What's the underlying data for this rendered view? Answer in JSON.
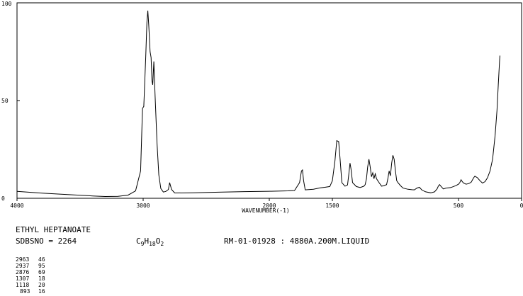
{
  "chart_data": {
    "type": "line",
    "title": "",
    "xlabel": "WAVENUMBER(-1)",
    "ylabel": "",
    "xlim": [
      4000,
      0
    ],
    "ylim": [
      0,
      100
    ],
    "x_ticks": [
      4000,
      3000,
      2000,
      1500,
      500,
      0
    ],
    "x_tick_labels": [
      "4000",
      "3000",
      "2000",
      "1500",
      "500",
      "0"
    ],
    "y_ticks": [
      0,
      50,
      100
    ],
    "y_tick_labels": [
      "0",
      "50",
      "100"
    ],
    "grid": false,
    "series": [
      {
        "points": [
          [
            4000,
            3.5
          ],
          [
            3800,
            2.6
          ],
          [
            3600,
            1.9
          ],
          [
            3400,
            1.2
          ],
          [
            3300,
            0.9
          ],
          [
            3200,
            1.0
          ],
          [
            3120,
            1.6
          ],
          [
            3060,
            3.8
          ],
          [
            3020,
            14
          ],
          [
            3005,
            46
          ],
          [
            2995,
            47
          ],
          [
            2980,
            72
          ],
          [
            2970,
            90
          ],
          [
            2963,
            96
          ],
          [
            2955,
            88
          ],
          [
            2945,
            75
          ],
          [
            2937,
            72
          ],
          [
            2930,
            60
          ],
          [
            2924,
            58
          ],
          [
            2915,
            70
          ],
          [
            2905,
            52
          ],
          [
            2890,
            28
          ],
          [
            2876,
            12
          ],
          [
            2860,
            5
          ],
          [
            2840,
            3.2
          ],
          [
            2820,
            3.5
          ],
          [
            2800,
            4.5
          ],
          [
            2790,
            8
          ],
          [
            2775,
            4.5
          ],
          [
            2750,
            2.7
          ],
          [
            2600,
            2.8
          ],
          [
            2400,
            3.1
          ],
          [
            2200,
            3.4
          ],
          [
            2000,
            3.6
          ],
          [
            1850,
            3.8
          ],
          [
            1800,
            4.0
          ],
          [
            1760,
            8
          ],
          [
            1745,
            14
          ],
          [
            1737,
            14.5
          ],
          [
            1728,
            9
          ],
          [
            1715,
            4.3
          ],
          [
            1650,
            4.6
          ],
          [
            1600,
            5.3
          ],
          [
            1560,
            5.6
          ],
          [
            1520,
            6
          ],
          [
            1500,
            9
          ],
          [
            1480,
            19
          ],
          [
            1465,
            29.5
          ],
          [
            1450,
            29
          ],
          [
            1440,
            21
          ],
          [
            1425,
            8
          ],
          [
            1400,
            6.2
          ],
          [
            1380,
            6.8
          ],
          [
            1370,
            12
          ],
          [
            1360,
            18
          ],
          [
            1352,
            15
          ],
          [
            1340,
            8
          ],
          [
            1310,
            6
          ],
          [
            1280,
            5.5
          ],
          [
            1250,
            6.2
          ],
          [
            1240,
            7
          ],
          [
            1230,
            10
          ],
          [
            1220,
            16
          ],
          [
            1210,
            20
          ],
          [
            1200,
            16
          ],
          [
            1190,
            11
          ],
          [
            1180,
            13
          ],
          [
            1170,
            10
          ],
          [
            1160,
            12.5
          ],
          [
            1150,
            10
          ],
          [
            1130,
            8
          ],
          [
            1110,
            6.2
          ],
          [
            1090,
            6.5
          ],
          [
            1070,
            7
          ],
          [
            1060,
            10
          ],
          [
            1050,
            14
          ],
          [
            1040,
            11.5
          ],
          [
            1030,
            18
          ],
          [
            1020,
            22
          ],
          [
            1010,
            20
          ],
          [
            1000,
            14
          ],
          [
            990,
            9
          ],
          [
            980,
            8
          ],
          [
            960,
            6.5
          ],
          [
            940,
            5.2
          ],
          [
            900,
            4.6
          ],
          [
            870,
            4.4
          ],
          [
            850,
            4.3
          ],
          [
            830,
            5.2
          ],
          [
            810,
            5.6
          ],
          [
            790,
            4.2
          ],
          [
            760,
            3.3
          ],
          [
            720,
            2.8
          ],
          [
            690,
            3.3
          ],
          [
            670,
            4.8
          ],
          [
            660,
            6.2
          ],
          [
            650,
            7
          ],
          [
            640,
            6.2
          ],
          [
            620,
            4.8
          ],
          [
            600,
            5.2
          ],
          [
            560,
            5.5
          ],
          [
            520,
            6.5
          ],
          [
            500,
            7.2
          ],
          [
            490,
            8
          ],
          [
            480,
            9.5
          ],
          [
            470,
            8.5
          ],
          [
            460,
            7.8
          ],
          [
            440,
            7.2
          ],
          [
            420,
            7.5
          ],
          [
            400,
            8.2
          ],
          [
            380,
            10.5
          ],
          [
            370,
            11.3
          ],
          [
            350,
            10.5
          ],
          [
            330,
            9
          ],
          [
            310,
            7.8
          ],
          [
            290,
            8.5
          ],
          [
            270,
            10.5
          ],
          [
            250,
            14
          ],
          [
            230,
            20
          ],
          [
            210,
            32
          ],
          [
            195,
            45
          ],
          [
            185,
            58
          ],
          [
            180,
            64
          ],
          [
            175,
            70
          ],
          [
            172,
            73
          ]
        ]
      }
    ]
  },
  "spectrum_info": {
    "compound_name": "ETHYL HEPTANOATE",
    "sdbs_no_label": "SDBSNO = 2264",
    "formula": [
      {
        "text": "C",
        "sub": "9"
      },
      {
        "text": "H",
        "sub": "18"
      },
      {
        "text": "O",
        "sub": "2"
      }
    ],
    "measurement": "RM-01-01928 : 4880A.200M.LIQUID"
  },
  "peak_table": [
    {
      "wavenumber": "2963",
      "intensity": "46"
    },
    {
      "wavenumber": "2937",
      "intensity": "95"
    },
    {
      "wavenumber": "2876",
      "intensity": "69"
    },
    {
      "wavenumber": "1307",
      "intensity": "18"
    },
    {
      "wavenumber": "1118",
      "intensity": "20"
    },
    {
      "wavenumber": "893",
      "intensity": "16"
    }
  ]
}
